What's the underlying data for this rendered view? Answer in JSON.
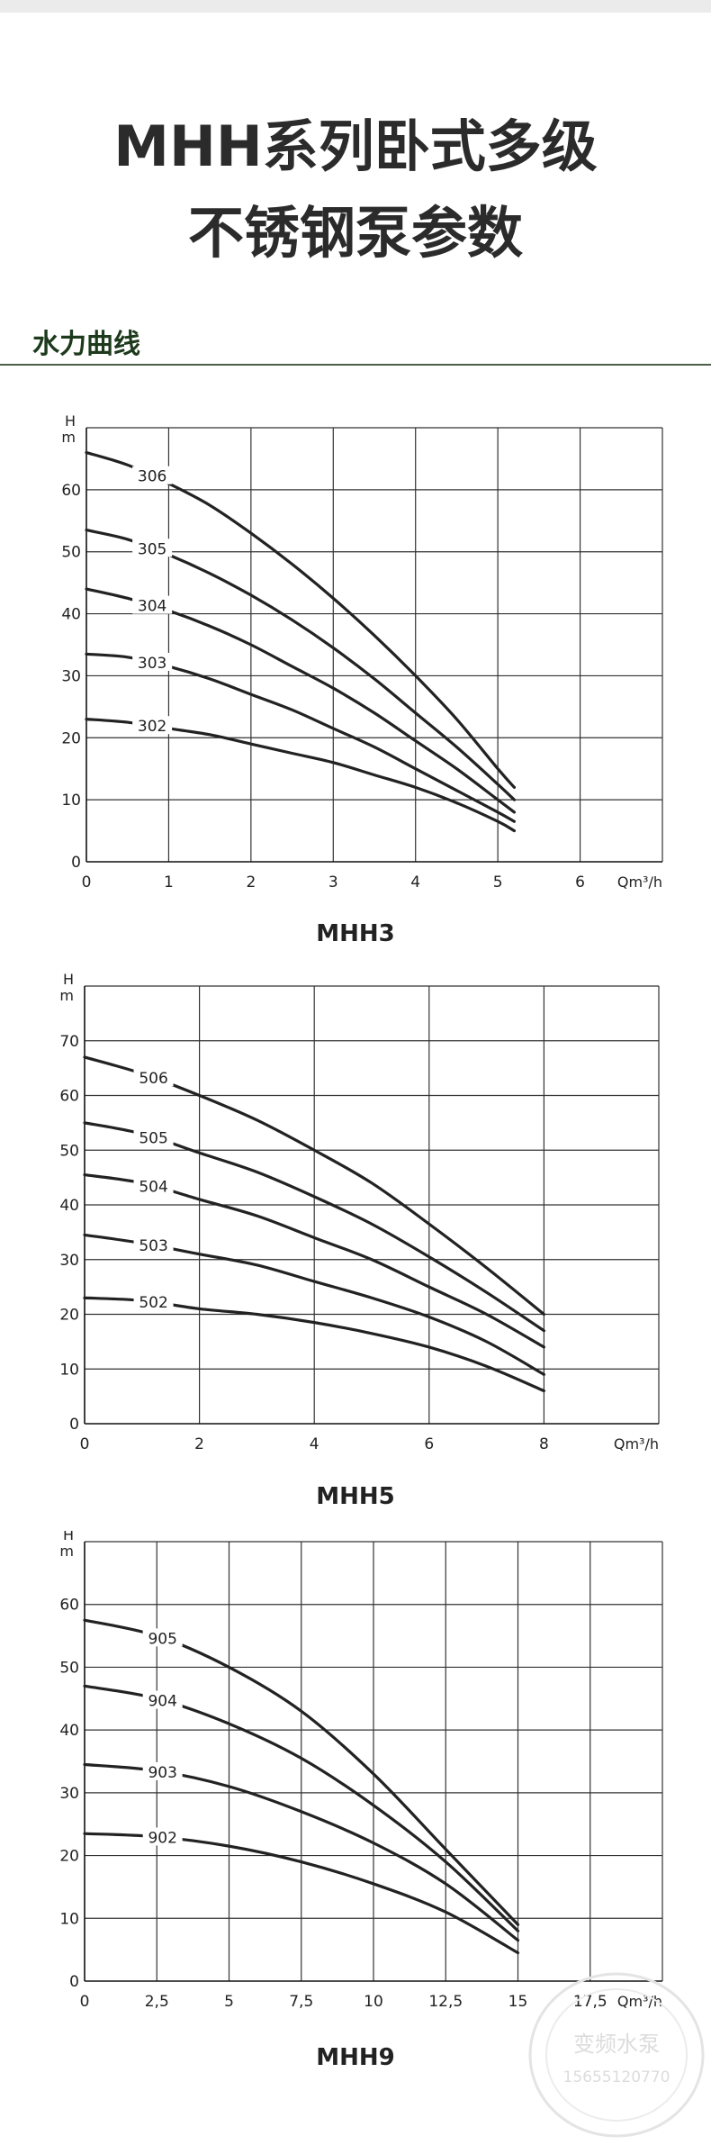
{
  "title": {
    "line1": "MHH系列卧式多级",
    "line2": "不锈钢泵参数"
  },
  "section": {
    "heading": "水力曲线"
  },
  "watermark": {
    "line1": "变频水泵",
    "line2": "15655120770"
  },
  "colors": {
    "heading": "#1d3a1d",
    "rule": "#4a5e4a",
    "line": "#222222",
    "grid": "#333333"
  },
  "chart_data": [
    {
      "type": "line",
      "caption": "MHH3",
      "ylabel": "H\nm",
      "xlabel": "Qm³/h",
      "xlim": [
        0,
        7
      ],
      "ylim": [
        0,
        70
      ],
      "xticks": [
        0,
        1,
        2,
        3,
        4,
        5,
        6
      ],
      "xtick_labels": [
        "0",
        "1",
        "2",
        "3",
        "4",
        "5",
        "6"
      ],
      "yticks": [
        0,
        10,
        20,
        30,
        40,
        50,
        60
      ],
      "ytick_labels": [
        "0",
        "10",
        "20",
        "30",
        "40",
        "50",
        "60"
      ],
      "grid": true,
      "series": [
        {
          "name": "306",
          "x": [
            0,
            0.5,
            1,
            1.5,
            2,
            2.5,
            3,
            3.5,
            4,
            4.5,
            5,
            5.2
          ],
          "y": [
            66,
            64,
            61,
            57.5,
            53,
            48,
            42.5,
            36.5,
            30,
            23,
            15,
            12
          ]
        },
        {
          "name": "305",
          "x": [
            0,
            0.5,
            1,
            1.5,
            2,
            2.5,
            3,
            3.5,
            4,
            4.5,
            5,
            5.2
          ],
          "y": [
            53.5,
            52,
            49.5,
            46.5,
            43,
            39,
            34.5,
            29.5,
            24,
            18.5,
            12.5,
            10
          ]
        },
        {
          "name": "304",
          "x": [
            0,
            0.5,
            1,
            1.5,
            2,
            2.5,
            3,
            3.5,
            4,
            4.5,
            5,
            5.2
          ],
          "y": [
            44,
            42.5,
            40.5,
            38,
            35,
            31.5,
            28,
            24,
            19.5,
            15,
            10,
            8
          ]
        },
        {
          "name": "303",
          "x": [
            0,
            0.5,
            1,
            1.5,
            2,
            2.5,
            3,
            3.5,
            4,
            4.5,
            5,
            5.2
          ],
          "y": [
            33.5,
            33,
            31.5,
            29.5,
            27,
            24.5,
            21.5,
            18.5,
            15,
            11.5,
            8,
            6.5
          ]
        },
        {
          "name": "302",
          "x": [
            0,
            0.5,
            1,
            1.5,
            2,
            2.5,
            3,
            3.5,
            4,
            4.5,
            5,
            5.2
          ],
          "y": [
            23,
            22.5,
            21.5,
            20.5,
            19,
            17.5,
            16,
            14,
            12,
            9.5,
            6.5,
            5
          ]
        }
      ]
    },
    {
      "type": "line",
      "caption": "MHH5",
      "ylabel": "H\nm",
      "xlabel": "Qm³/h",
      "xlim": [
        0,
        10
      ],
      "ylim": [
        0,
        80
      ],
      "xticks": [
        0,
        2,
        4,
        6,
        8
      ],
      "xtick_labels": [
        "0",
        "2",
        "4",
        "6",
        "8"
      ],
      "yticks": [
        0,
        10,
        20,
        30,
        40,
        50,
        60,
        70
      ],
      "ytick_labels": [
        "0",
        "10",
        "20",
        "30",
        "40",
        "50",
        "60",
        "70"
      ],
      "grid": true,
      "series": [
        {
          "name": "506",
          "x": [
            0,
            1,
            2,
            3,
            4,
            5,
            6,
            7,
            8
          ],
          "y": [
            67,
            64,
            60,
            55.5,
            50,
            44,
            36.5,
            28.5,
            20
          ]
        },
        {
          "name": "505",
          "x": [
            0,
            1,
            2,
            3,
            4,
            5,
            6,
            7,
            8
          ],
          "y": [
            55,
            53,
            49.5,
            46,
            41.5,
            36.5,
            30.5,
            24,
            17
          ]
        },
        {
          "name": "504",
          "x": [
            0,
            1,
            2,
            3,
            4,
            5,
            6,
            7,
            8
          ],
          "y": [
            45.5,
            44,
            41,
            38,
            34,
            30,
            25,
            20,
            14
          ]
        },
        {
          "name": "503",
          "x": [
            0,
            1,
            2,
            3,
            4,
            5,
            6,
            7,
            8
          ],
          "y": [
            34.5,
            33,
            31,
            29,
            26,
            23,
            19.5,
            15,
            9
          ]
        },
        {
          "name": "502",
          "x": [
            0,
            1,
            2,
            3,
            4,
            5,
            6,
            7,
            8
          ],
          "y": [
            23,
            22.5,
            21,
            20,
            18.5,
            16.5,
            14,
            10.5,
            6
          ]
        }
      ]
    },
    {
      "type": "line",
      "caption": "MHH9",
      "ylabel": "H\nm",
      "xlabel": "Qm³/h",
      "xlim": [
        0,
        20
      ],
      "ylim": [
        0,
        70
      ],
      "xticks": [
        0,
        2.5,
        5,
        7.5,
        10,
        12.5,
        15,
        17.5
      ],
      "xtick_labels": [
        "0",
        "2,5",
        "5",
        "7,5",
        "10",
        "12,5",
        "15",
        "17,5"
      ],
      "yticks": [
        0,
        10,
        20,
        30,
        40,
        50,
        60
      ],
      "ytick_labels": [
        "0",
        "10",
        "20",
        "30",
        "40",
        "50",
        "60"
      ],
      "grid": true,
      "series": [
        {
          "name": "905",
          "x": [
            0,
            2.5,
            5,
            7.5,
            10,
            12.5,
            15
          ],
          "y": [
            57.5,
            55,
            50,
            43,
            33,
            21,
            9
          ]
        },
        {
          "name": "904",
          "x": [
            0,
            2.5,
            5,
            7.5,
            10,
            12.5,
            15
          ],
          "y": [
            47,
            45,
            41,
            35.5,
            28,
            19,
            8
          ]
        },
        {
          "name": "903",
          "x": [
            0,
            2.5,
            5,
            7.5,
            10,
            12.5,
            15
          ],
          "y": [
            34.5,
            33.5,
            31,
            27,
            22,
            15.5,
            6.5
          ]
        },
        {
          "name": "902",
          "x": [
            0,
            2.5,
            5,
            7.5,
            10,
            12.5,
            15
          ],
          "y": [
            23.5,
            23,
            21.5,
            19,
            15.5,
            11,
            4.5
          ]
        }
      ]
    }
  ]
}
